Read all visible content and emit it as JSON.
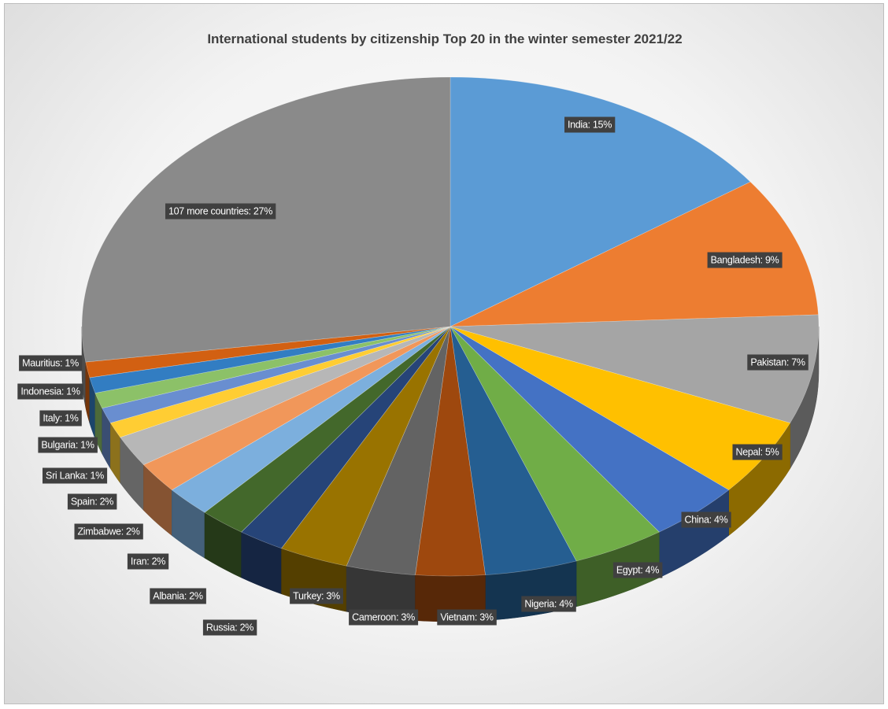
{
  "chart_data": {
    "type": "pie",
    "title": "International students by citizenship Top 20 in the winter semester 2021/22",
    "slices": [
      {
        "label": "India: 15%",
        "value": 15,
        "color": "#5b9bd5"
      },
      {
        "label": "Bangladesh: 9%",
        "value": 9,
        "color": "#ed7d31"
      },
      {
        "label": "Pakistan: 7%",
        "value": 7,
        "color": "#a5a5a5"
      },
      {
        "label": "Nepal: 5%",
        "value": 5,
        "color": "#ffc000"
      },
      {
        "label": "China: 4%",
        "value": 4,
        "color": "#4472c4"
      },
      {
        "label": "Egypt: 4%",
        "value": 4,
        "color": "#70ad47"
      },
      {
        "label": "Nigeria: 4%",
        "value": 4,
        "color": "#255e91"
      },
      {
        "label": "Vietnam: 3%",
        "value": 3,
        "color": "#9e480e"
      },
      {
        "label": "Cameroon: 3%",
        "value": 3,
        "color": "#636363"
      },
      {
        "label": "Turkey: 3%",
        "value": 3,
        "color": "#997300"
      },
      {
        "label": "Russia: 2%",
        "value": 2,
        "color": "#264478"
      },
      {
        "label": "Albania: 2%",
        "value": 2,
        "color": "#43682b"
      },
      {
        "label": "Iran: 2%",
        "value": 2,
        "color": "#7cafdd"
      },
      {
        "label": "Zimbabwe: 2%",
        "value": 2,
        "color": "#f1975a"
      },
      {
        "label": "Spain: 2%",
        "value": 2,
        "color": "#b7b7b7"
      },
      {
        "label": "Sri Lanka: 1%",
        "value": 1,
        "color": "#ffcd33"
      },
      {
        "label": "Bulgaria: 1%",
        "value": 1,
        "color": "#698ed0"
      },
      {
        "label": "Italy: 1%",
        "value": 1,
        "color": "#8cc168"
      },
      {
        "label": "Indonesia: 1%",
        "value": 1,
        "color": "#327dc2"
      },
      {
        "label": "Mauritius: 1%",
        "value": 1,
        "color": "#d26012"
      },
      {
        "label": "107 more countries: 27%",
        "value": 27,
        "color": "#8a8a8a"
      }
    ],
    "legend": "none"
  }
}
